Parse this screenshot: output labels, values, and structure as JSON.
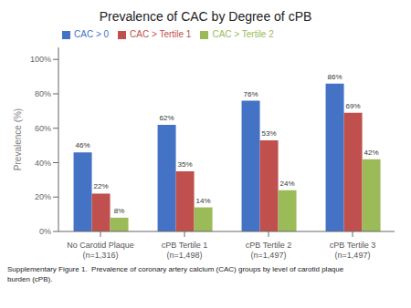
{
  "chart_data": {
    "type": "bar",
    "title": "Prevalence of CAC by Degree of cPB",
    "ylabel": "Prevalence (%)",
    "caption": "Supplementary Figure 1.  Prevalence of coronary artery calcium (CAC) groups by level of carotid plaque\nburden (cPB).",
    "categories": [
      "No Carotid Plaque\n(n=1,316)",
      "cPB Tertile 1\n(n=1,498)",
      "cPB Tertile 2\n(n=1,497)",
      "cPB Tertile 3\n(n=1,497)"
    ],
    "series": [
      {
        "name": "CAC > 0",
        "color": "#4472C4",
        "values": [
          46,
          62,
          76,
          86
        ],
        "value_labels": [
          "46%",
          "62%",
          "76%",
          "86%"
        ]
      },
      {
        "name": "CAC > Tertile 1",
        "color": "#C0504D",
        "values": [
          22,
          35,
          53,
          69
        ],
        "value_labels": [
          "22%",
          "35%",
          "53%",
          "69%"
        ]
      },
      {
        "name": "CAC > Tertile 2",
        "color": "#9BBB59",
        "values": [
          8,
          14,
          24,
          42
        ],
        "value_labels": [
          "8%",
          "14%",
          "24%",
          "42%"
        ]
      }
    ],
    "ylim": [
      0,
      107
    ],
    "yticks": [
      {
        "value": 0,
        "label": "0%"
      },
      {
        "value": 20,
        "label": "20%"
      },
      {
        "value": 40,
        "label": "40%"
      },
      {
        "value": 60,
        "label": "60%"
      },
      {
        "value": 80,
        "label": "80%"
      },
      {
        "value": 100,
        "label": "100%"
      }
    ],
    "grid": false,
    "legend": "upper left",
    "data_labels": true
  }
}
